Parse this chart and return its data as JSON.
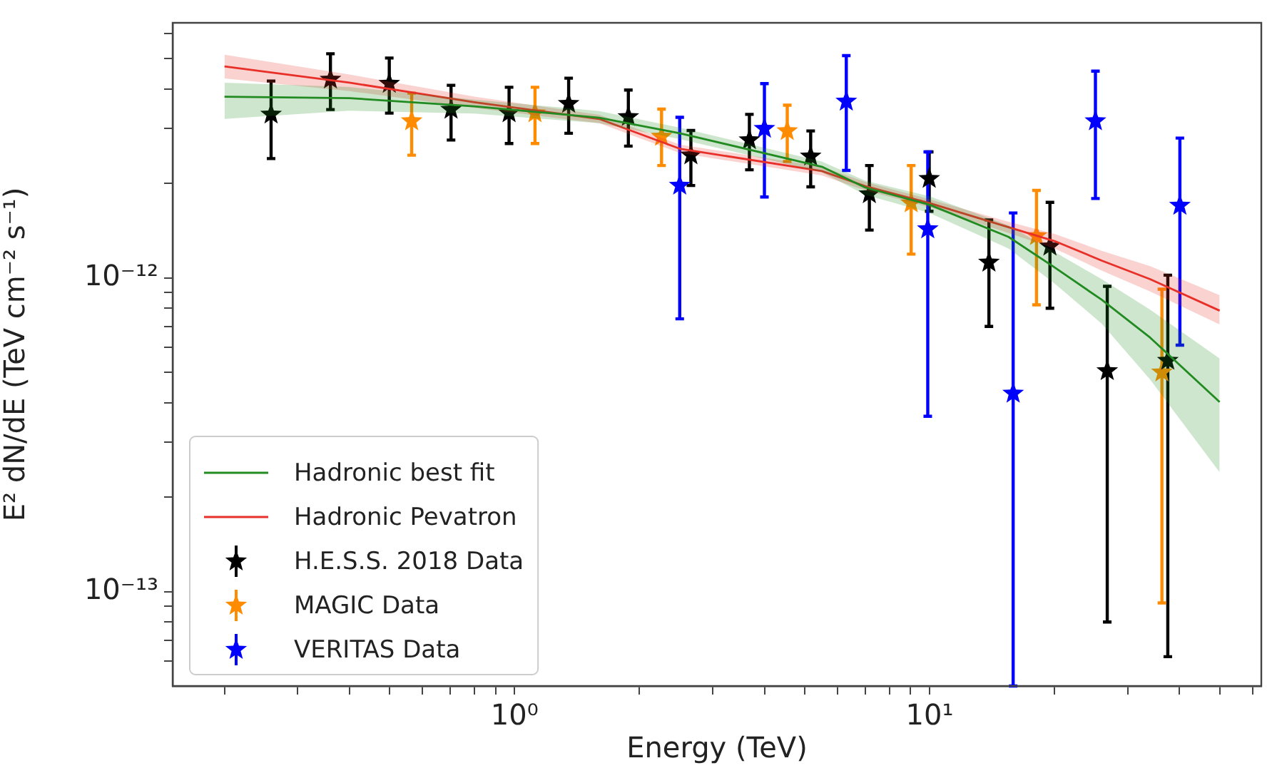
{
  "chart_data": {
    "type": "scatter",
    "xlabel": "Energy (TeV)",
    "ylabel": "E² dN/dE (TeV cm⁻² s⁻¹)",
    "log": "xy",
    "legend": "bottom left",
    "marker": "star",
    "xlim": [
      0.15,
      63
    ],
    "ylim": [
      5e-14,
      6.5e-12
    ],
    "xticks": [
      {
        "value": 0.2,
        "label": null
      },
      {
        "value": 0.3,
        "label": null
      },
      {
        "value": 0.4,
        "label": null
      },
      {
        "value": 0.5,
        "label": null
      },
      {
        "value": 0.6,
        "label": null
      },
      {
        "value": 0.7,
        "label": null
      },
      {
        "value": 0.8,
        "label": null
      },
      {
        "value": 0.9,
        "label": null
      },
      {
        "value": 1,
        "label": "10⁰"
      },
      {
        "value": 2,
        "label": null
      },
      {
        "value": 3,
        "label": null
      },
      {
        "value": 4,
        "label": null
      },
      {
        "value": 5,
        "label": null
      },
      {
        "value": 6,
        "label": null
      },
      {
        "value": 7,
        "label": null
      },
      {
        "value": 8,
        "label": null
      },
      {
        "value": 9,
        "label": null
      },
      {
        "value": 10,
        "label": "10¹"
      },
      {
        "value": 20,
        "label": null
      },
      {
        "value": 30,
        "label": null
      },
      {
        "value": 40,
        "label": null
      },
      {
        "value": 50,
        "label": null
      },
      {
        "value": 60,
        "label": null
      }
    ],
    "yticks": [
      {
        "value": 6e-14,
        "label": null
      },
      {
        "value": 7e-14,
        "label": null
      },
      {
        "value": 8e-14,
        "label": null
      },
      {
        "value": 9e-14,
        "label": null
      },
      {
        "value": 1e-13,
        "label": "10⁻¹³"
      },
      {
        "value": 2e-13,
        "label": null
      },
      {
        "value": 3e-13,
        "label": null
      },
      {
        "value": 4e-13,
        "label": null
      },
      {
        "value": 5e-13,
        "label": null
      },
      {
        "value": 6e-13,
        "label": null
      },
      {
        "value": 7e-13,
        "label": null
      },
      {
        "value": 8e-13,
        "label": null
      },
      {
        "value": 9e-13,
        "label": null
      },
      {
        "value": 1e-12,
        "label": "10⁻¹²"
      },
      {
        "value": 2e-12,
        "label": null
      },
      {
        "value": 3e-12,
        "label": null
      },
      {
        "value": 4e-12,
        "label": null
      },
      {
        "value": 5e-12,
        "label": null
      },
      {
        "value": 6e-12,
        "label": null
      }
    ],
    "series": [
      {
        "name": "Hadronic best fit",
        "type": "line",
        "marker": "none",
        "color": "#228b22",
        "x": [
          0.2,
          0.4,
          0.8,
          1.6,
          2.5,
          5.5,
          7,
          10,
          15.5,
          20,
          26,
          34,
          50
        ],
        "values": [
          3.78e-12,
          3.74e-12,
          3.52e-12,
          3.24e-12,
          2.89e-12,
          2.26e-12,
          1.94e-12,
          1.71e-12,
          1.35e-12,
          1.08e-12,
          8.51e-13,
          6.45e-13,
          4.02e-13
        ],
        "lower": [
          3.21e-12,
          3.41e-12,
          3.34e-12,
          3.11e-12,
          2.77e-12,
          2.17e-12,
          1.84e-12,
          1.61e-12,
          1.24e-12,
          9.6e-13,
          7.14e-13,
          4.74e-13,
          2.4e-13
        ],
        "upper": [
          4.19e-12,
          4.06e-12,
          3.7e-12,
          3.4e-12,
          3.01e-12,
          2.35e-12,
          2.04e-12,
          1.82e-12,
          1.47e-12,
          1.21e-12,
          9.9e-13,
          7.92e-13,
          5.53e-13
        ]
      },
      {
        "name": "Hadronic Pevatron",
        "type": "line",
        "marker": "none",
        "color": "#e8302a",
        "x": [
          0.2,
          0.4,
          0.8,
          1.6,
          2.5,
          5.5,
          7,
          10,
          15.5,
          20,
          26,
          34,
          50
        ],
        "values": [
          4.72e-12,
          4.19e-12,
          3.63e-12,
          3.21e-12,
          2.58e-12,
          2.19e-12,
          1.96e-12,
          1.73e-12,
          1.45e-12,
          1.31e-12,
          1.135e-12,
          9.9e-13,
          7.86e-13
        ],
        "lower": [
          4.32e-12,
          3.94e-12,
          3.48e-12,
          3.11e-12,
          2.5e-12,
          2.12e-12,
          1.9e-12,
          1.68e-12,
          1.39e-12,
          1.24e-12,
          1.055e-12,
          9.05e-13,
          7.1e-13
        ],
        "upper": [
          5.14e-12,
          4.45e-12,
          3.78e-12,
          3.31e-12,
          2.66e-12,
          2.26e-12,
          2.02e-12,
          1.78e-12,
          1.51e-12,
          1.38e-12,
          1.22e-12,
          1.09e-12,
          8.8e-13
        ]
      },
      {
        "name": "H.E.S.S. 2018 Data",
        "type": "scatter",
        "color": "#000000",
        "x": [
          0.259,
          0.36,
          0.499,
          0.703,
          0.97,
          1.35,
          1.88,
          2.66,
          3.68,
          5.17,
          7.16,
          9.98,
          13.9,
          19.5,
          26.8,
          37.5
        ],
        "values": [
          3.32e-12,
          4.29e-12,
          4.16e-12,
          3.44e-12,
          3.35e-12,
          3.59e-12,
          3.26e-12,
          2.46e-12,
          2.75e-12,
          2.44e-12,
          1.85e-12,
          2.07e-12,
          1.12e-12,
          1.26e-12,
          5.05e-13,
          5.45e-13
        ],
        "errors": [
          [
            2.4e-12,
            4.24e-12
          ],
          [
            3.44e-12,
            5.18e-12
          ],
          [
            3.35e-12,
            5.02e-12
          ],
          [
            2.75e-12,
            4.11e-12
          ],
          [
            2.68e-12,
            4.05e-12
          ],
          [
            2.89e-12,
            4.33e-12
          ],
          [
            2.63e-12,
            3.97e-12
          ],
          [
            1.97e-12,
            2.95e-12
          ],
          [
            2.21e-12,
            3.32e-12
          ],
          [
            1.95e-12,
            2.94e-12
          ],
          [
            1.42e-12,
            2.28e-12
          ],
          [
            1.63e-12,
            2.52e-12
          ],
          [
            7e-13,
            1.53e-12
          ],
          [
            8e-13,
            1.74e-12
          ],
          [
            8e-14,
            9.4e-13
          ],
          [
            6.2e-14,
            1.02e-12
          ]
        ]
      },
      {
        "name": "MAGIC Data",
        "type": "scatter",
        "color": "#ff8c00",
        "x": [
          0.565,
          1.12,
          2.26,
          4.54,
          9.03,
          18.1,
          36.3
        ],
        "values": [
          3.16e-12,
          3.35e-12,
          2.82e-12,
          2.94e-12,
          1.73e-12,
          1.36e-12,
          5e-13
        ],
        "errors": [
          [
            2.46e-12,
            3.88e-12
          ],
          [
            2.68e-12,
            4.05e-12
          ],
          [
            2.28e-12,
            3.45e-12
          ],
          [
            2.35e-12,
            3.55e-12
          ],
          [
            1.19e-12,
            2.28e-12
          ],
          [
            8.2e-13,
            1.9e-12
          ],
          [
            9.2e-14,
            9.2e-13
          ]
        ]
      },
      {
        "name": "VERITAS Data",
        "type": "scatter",
        "color": "#0000ff",
        "x": [
          2.5,
          4.0,
          6.3,
          9.9,
          15.9,
          25.1,
          40.1
        ],
        "values": [
          1.97e-12,
          2.99e-12,
          3.65e-12,
          1.43e-12,
          4.28e-13,
          3.16e-12,
          1.7e-12
        ],
        "errors": [
          [
            7.4e-13,
            3.25e-12
          ],
          [
            1.81e-12,
            4.16e-12
          ],
          [
            2.2e-12,
            5.11e-12
          ],
          [
            3.62e-13,
            2.52e-12
          ],
          [
            5e-14,
            1.61e-12
          ],
          [
            1.79e-12,
            4.56e-12
          ],
          [
            6.1e-13,
            2.79e-12
          ]
        ]
      }
    ]
  }
}
